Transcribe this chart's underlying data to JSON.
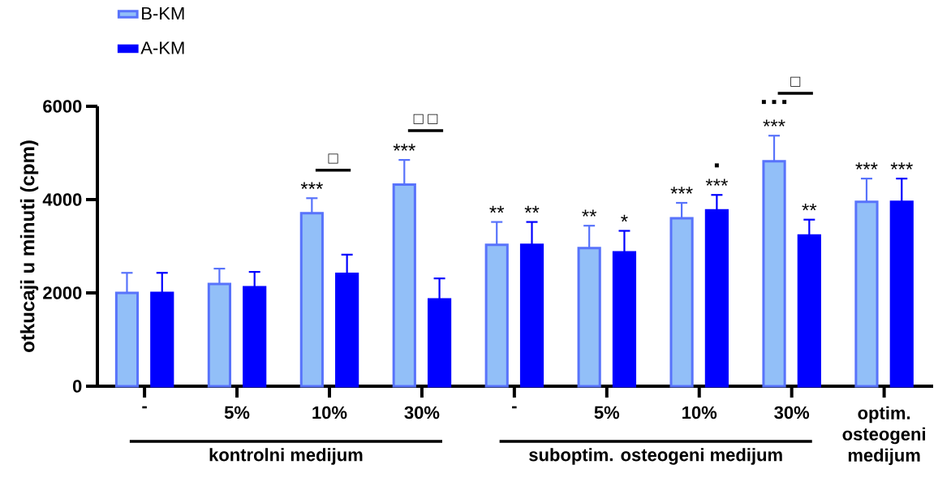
{
  "chart_data": {
    "type": "bar",
    "ylabel": "otkucaji u minuti (cpm)",
    "categories": [
      "-",
      "5%",
      "10%",
      "30%",
      "-",
      "5%",
      "10%",
      "30%",
      "optim. osteogeni medijum"
    ],
    "series": [
      {
        "name": "B-KM",
        "color": "#92bff8",
        "values": [
          2000,
          2190,
          3710,
          4320,
          3030,
          2960,
          3600,
          4820,
          3950
        ],
        "errors": [
          [
            2000,
            2430
          ],
          [
            2190,
            2520
          ],
          [
            3710,
            4030
          ],
          [
            4320,
            4850
          ],
          [
            3030,
            3520
          ],
          [
            2960,
            3440
          ],
          [
            3600,
            3930
          ],
          [
            4820,
            5370
          ],
          [
            3950,
            4450
          ]
        ],
        "value_labels": [
          null,
          null,
          "***",
          "***",
          "**",
          "**",
          "***",
          "***",
          "***"
        ]
      },
      {
        "name": "A-KM",
        "color": "#0000ff",
        "values": [
          2000,
          2120,
          2410,
          1860,
          3030,
          2870,
          3770,
          3230,
          3950
        ],
        "errors": [
          [
            2000,
            2430
          ],
          [
            2120,
            2450
          ],
          [
            2410,
            2820
          ],
          [
            1860,
            2310
          ],
          [
            3030,
            3520
          ],
          [
            2870,
            3330
          ],
          [
            3770,
            4100
          ],
          [
            3230,
            3570
          ],
          [
            3950,
            4450
          ]
        ],
        "value_labels": [
          null,
          null,
          null,
          null,
          "**",
          "*",
          "***",
          "**",
          "***"
        ]
      }
    ],
    "ylim": [
      0,
      6000
    ],
    "yticks": [
      0,
      2000,
      4000,
      6000
    ],
    "legend": "top left",
    "annotations": [
      "□",
      "□ □",
      "□",
      "▪",
      "▪ ▪ ▪",
      "kontrolni medijum",
      "suboptim. osteogeni medijum"
    ]
  }
}
